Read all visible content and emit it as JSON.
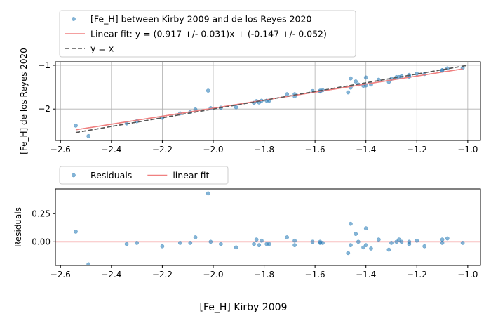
{
  "chart_data": [
    {
      "type": "scatter",
      "title": "",
      "xlabel": "",
      "ylabel": "[Fe_H] de los Reyes 2020",
      "xlim": [
        -2.62,
        -0.95
      ],
      "ylim": [
        -2.72,
        -0.92
      ],
      "xticks": [
        -2.6,
        -2.4,
        -2.2,
        -2.0,
        -1.8,
        -1.6,
        -1.4,
        -1.2,
        -1.0
      ],
      "xtick_labels": [
        "−2.6",
        "−2.4",
        "−2.2",
        "−2.0",
        "−1.8",
        "−1.6",
        "−1.4",
        "−1.2",
        "−1.0"
      ],
      "yticks": [
        -2,
        -1
      ],
      "ytick_labels": [
        "−2",
        "−1"
      ],
      "grid": true,
      "legend_position": "above",
      "series": [
        {
          "name": "[Fe_H] between Kirby 2009 and de los Reyes 2020",
          "kind": "scatter",
          "color": "#1f77b4",
          "x": [
            -2.54,
            -2.49,
            -2.34,
            -2.3,
            -2.2,
            -2.13,
            -2.09,
            -2.07,
            -2.02,
            -2.01,
            -1.97,
            -1.91,
            -1.84,
            -1.83,
            -1.82,
            -1.81,
            -1.79,
            -1.78,
            -1.71,
            -1.68,
            -1.68,
            -1.61,
            -1.58,
            -1.58,
            -1.57,
            -1.47,
            -1.46,
            -1.46,
            -1.44,
            -1.43,
            -1.41,
            -1.4,
            -1.4,
            -1.38,
            -1.35,
            -1.31,
            -1.3,
            -1.28,
            -1.27,
            -1.26,
            -1.23,
            -1.23,
            -1.2,
            -1.17,
            -1.1,
            -1.1,
            -1.08,
            -1.02
          ],
          "y": [
            -2.38,
            -2.62,
            -2.33,
            -2.28,
            -2.2,
            -2.1,
            -2.07,
            -2.01,
            -1.58,
            -1.98,
            -1.97,
            -1.96,
            -1.86,
            -1.82,
            -1.85,
            -1.81,
            -1.81,
            -1.81,
            -1.66,
            -1.66,
            -1.71,
            -1.59,
            -1.58,
            -1.6,
            -1.57,
            -1.62,
            -1.3,
            -1.51,
            -1.37,
            -1.44,
            -1.47,
            -1.28,
            -1.46,
            -1.44,
            -1.33,
            -1.38,
            -1.31,
            -1.27,
            -1.27,
            -1.25,
            -1.26,
            -1.22,
            -1.19,
            -1.2,
            -1.12,
            -1.11,
            -1.07,
            -1.06
          ]
        },
        {
          "name": "Linear fit: y = (0.917 +/- 0.031)x + (-0.147 +/- 0.052)",
          "kind": "line",
          "color": "#f08080",
          "style": "solid",
          "x": [
            -2.54,
            -1.02
          ],
          "y": [
            -2.476,
            -1.082
          ]
        },
        {
          "name": "y = x",
          "kind": "line",
          "color": "#555555",
          "style": "dashed",
          "x": [
            -2.54,
            -1.0
          ],
          "y": [
            -2.54,
            -1.0
          ]
        }
      ]
    },
    {
      "type": "scatter",
      "title": "",
      "xlabel": "[Fe_H] Kirby 2009",
      "ylabel": "Residuals",
      "xlim": [
        -2.62,
        -0.95
      ],
      "ylim": [
        -0.21,
        0.47
      ],
      "xticks": [
        -2.6,
        -2.4,
        -2.2,
        -2.0,
        -1.8,
        -1.6,
        -1.4,
        -1.2,
        -1.0
      ],
      "xtick_labels": [
        "−2.6",
        "−2.4",
        "−2.2",
        "−2.0",
        "−1.8",
        "−1.6",
        "−1.4",
        "−1.2",
        "−1.0"
      ],
      "yticks": [
        0.0,
        0.25
      ],
      "ytick_labels": [
        "0.00",
        "0.25"
      ],
      "grid": false,
      "legend_position": "above",
      "series": [
        {
          "name": "Residuals",
          "kind": "scatter",
          "color": "#1f77b4",
          "x": [
            -2.54,
            -2.49,
            -2.34,
            -2.3,
            -2.2,
            -2.13,
            -2.09,
            -2.07,
            -2.02,
            -2.01,
            -1.97,
            -1.91,
            -1.84,
            -1.83,
            -1.82,
            -1.81,
            -1.79,
            -1.78,
            -1.71,
            -1.68,
            -1.68,
            -1.61,
            -1.58,
            -1.58,
            -1.57,
            -1.47,
            -1.46,
            -1.46,
            -1.44,
            -1.43,
            -1.41,
            -1.4,
            -1.4,
            -1.38,
            -1.35,
            -1.31,
            -1.3,
            -1.28,
            -1.27,
            -1.26,
            -1.23,
            -1.23,
            -1.2,
            -1.17,
            -1.1,
            -1.1,
            -1.08,
            -1.02
          ],
          "y": [
            0.09,
            -0.2,
            -0.02,
            -0.01,
            -0.04,
            -0.01,
            -0.01,
            0.04,
            0.43,
            0.0,
            -0.02,
            -0.05,
            -0.02,
            0.02,
            -0.03,
            0.01,
            -0.02,
            -0.02,
            0.04,
            0.01,
            -0.03,
            0.0,
            -0.01,
            0.0,
            -0.01,
            -0.1,
            0.16,
            -0.03,
            0.07,
            0.0,
            -0.05,
            0.12,
            -0.03,
            -0.06,
            0.02,
            -0.07,
            -0.01,
            0.0,
            0.02,
            0.0,
            0.0,
            -0.02,
            0.01,
            -0.04,
            0.02,
            -0.01,
            0.03,
            -0.01
          ]
        },
        {
          "name": "linear fit",
          "kind": "line",
          "color": "#f08080",
          "style": "solid",
          "x": [
            -2.62,
            -0.95
          ],
          "y": [
            0.0,
            0.0
          ]
        }
      ]
    }
  ]
}
